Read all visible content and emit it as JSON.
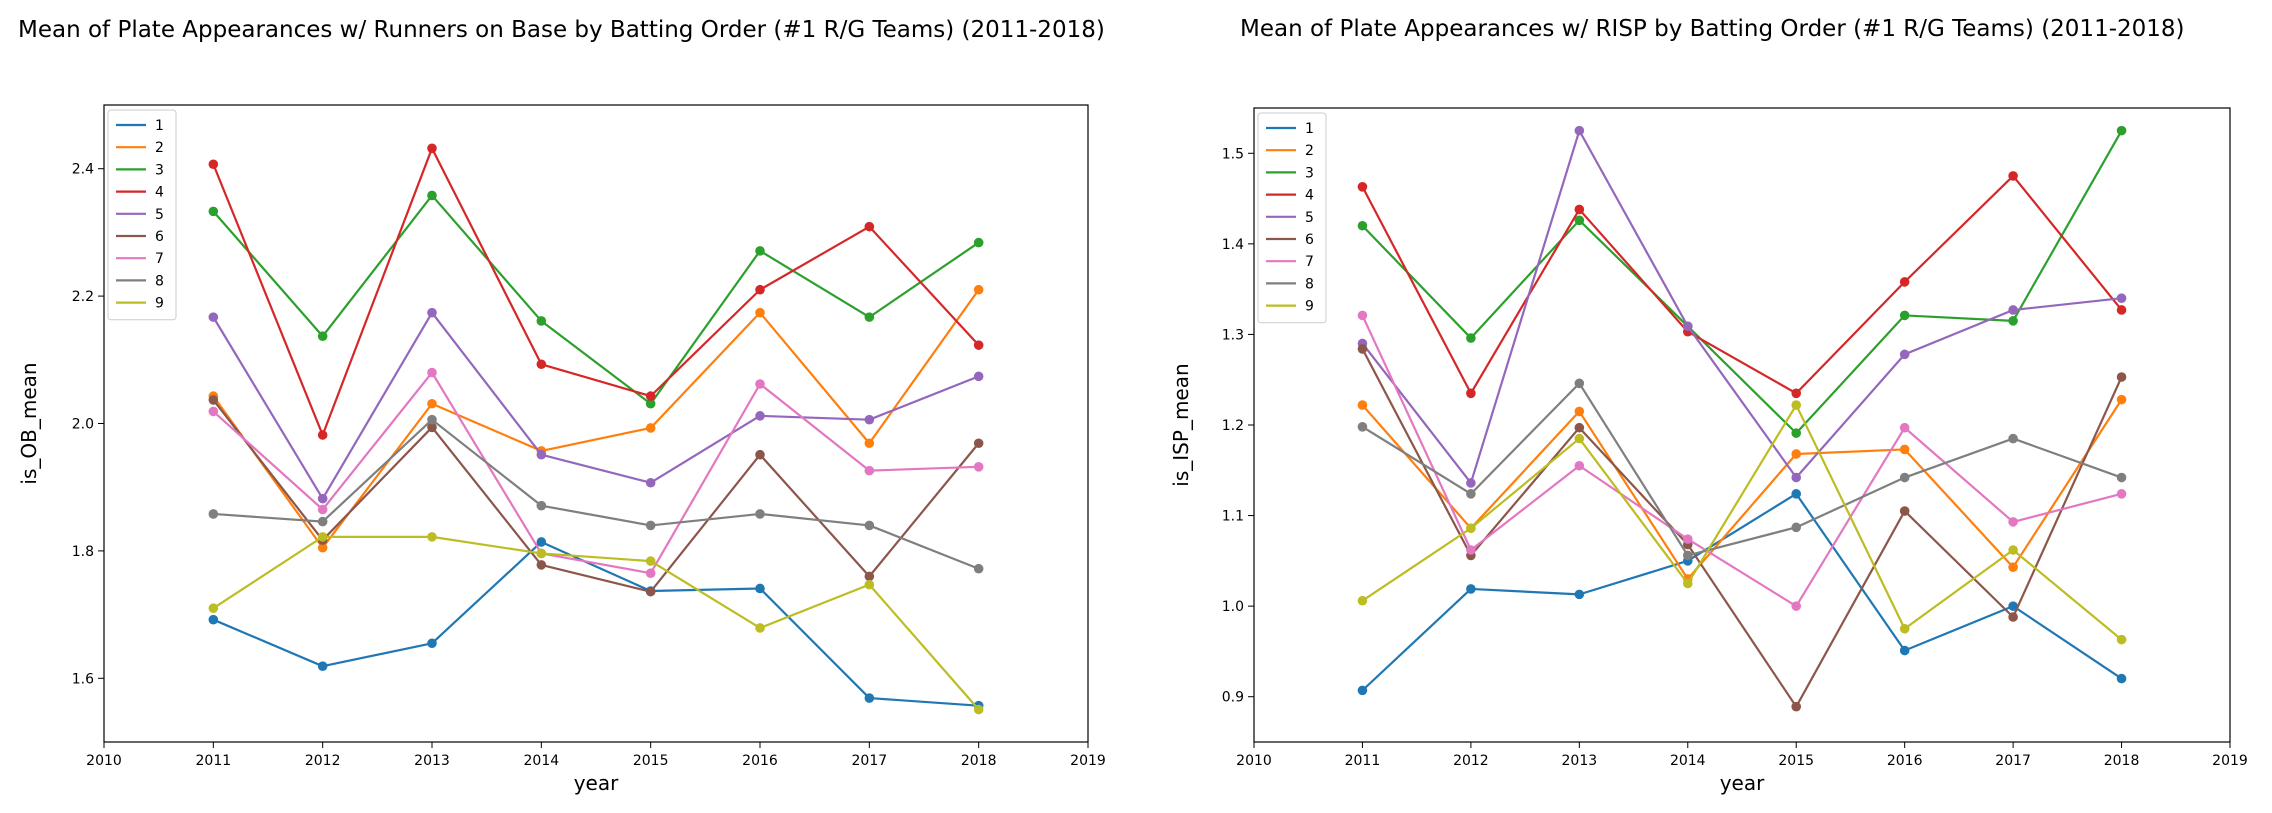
{
  "chart_data": [
    {
      "type": "line",
      "title": "Mean of Plate Appearances w/ Runners on Base by Batting Order (#1 R/G Teams) (2011-2018)",
      "xlabel": "year",
      "ylabel": "is_OB_mean",
      "xlim": [
        2010,
        2019
      ],
      "ylim": [
        1.5,
        2.5
      ],
      "xticks": [
        "2010",
        "2011",
        "2012",
        "2013",
        "2014",
        "2015",
        "2016",
        "2017",
        "2018",
        "2019"
      ],
      "yticks": [
        "1.6",
        "1.8",
        "2.0",
        "2.2",
        "2.4"
      ],
      "legend": "top-left",
      "grid": false,
      "x": [
        2011,
        2012,
        2013,
        2014,
        2015,
        2016,
        2017,
        2018
      ],
      "series": [
        {
          "name": "1",
          "color": "#1f77b4",
          "values": [
            1.692,
            1.619,
            1.655,
            1.814,
            1.737,
            1.741,
            1.569,
            1.557
          ]
        },
        {
          "name": "2",
          "color": "#ff7f0e",
          "values": [
            2.043,
            1.805,
            2.031,
            1.957,
            1.993,
            2.174,
            1.969,
            2.21
          ]
        },
        {
          "name": "3",
          "color": "#2ca02c",
          "values": [
            2.333,
            2.137,
            2.358,
            2.161,
            2.031,
            2.271,
            2.167,
            2.284
          ]
        },
        {
          "name": "4",
          "color": "#d62728",
          "values": [
            2.407,
            1.982,
            2.432,
            2.093,
            2.043,
            2.21,
            2.309,
            2.123
          ]
        },
        {
          "name": "5",
          "color": "#9467bd",
          "values": [
            2.167,
            1.882,
            2.174,
            1.951,
            1.907,
            2.012,
            2.006,
            2.074
          ]
        },
        {
          "name": "6",
          "color": "#8c564b",
          "values": [
            2.037,
            1.817,
            1.994,
            1.778,
            1.736,
            1.951,
            1.76,
            1.969
          ]
        },
        {
          "name": "7",
          "color": "#e377c2",
          "values": [
            2.019,
            1.865,
            2.08,
            1.796,
            1.765,
            2.062,
            1.926,
            1.932
          ]
        },
        {
          "name": "8",
          "color": "#7f7f7f",
          "values": [
            1.858,
            1.846,
            2.006,
            1.871,
            1.84,
            1.858,
            1.84,
            1.772
          ]
        },
        {
          "name": "9",
          "color": "#bcbd22",
          "values": [
            1.71,
            1.822,
            1.822,
            1.796,
            1.784,
            1.679,
            1.747,
            1.551
          ]
        }
      ]
    },
    {
      "type": "line",
      "title": "Mean of Plate Appearances w/ RISP by Batting Order (#1 R/G Teams) (2011-2018)",
      "xlabel": "year",
      "ylabel": "is_ISP_mean",
      "xlim": [
        2010,
        2019
      ],
      "ylim": [
        0.85,
        1.55
      ],
      "xticks": [
        "2010",
        "2011",
        "2012",
        "2013",
        "2014",
        "2015",
        "2016",
        "2017",
        "2018",
        "2019"
      ],
      "yticks": [
        "0.9",
        "1.0",
        "1.1",
        "1.2",
        "1.3",
        "1.4",
        "1.5"
      ],
      "legend": "top-left",
      "grid": false,
      "x": [
        2011,
        2012,
        2013,
        2014,
        2015,
        2016,
        2017,
        2018
      ],
      "series": [
        {
          "name": "1",
          "color": "#1f77b4",
          "values": [
            0.907,
            1.019,
            1.013,
            1.05,
            1.124,
            0.951,
            1.0,
            0.92
          ]
        },
        {
          "name": "2",
          "color": "#ff7f0e",
          "values": [
            1.222,
            1.086,
            1.215,
            1.03,
            1.168,
            1.173,
            1.043,
            1.228
          ]
        },
        {
          "name": "3",
          "color": "#2ca02c",
          "values": [
            1.42,
            1.296,
            1.426,
            1.309,
            1.191,
            1.321,
            1.315,
            1.525
          ]
        },
        {
          "name": "4",
          "color": "#d62728",
          "values": [
            1.463,
            1.235,
            1.438,
            1.303,
            1.235,
            1.358,
            1.475,
            1.327
          ]
        },
        {
          "name": "5",
          "color": "#9467bd",
          "values": [
            1.29,
            1.136,
            1.525,
            1.309,
            1.142,
            1.278,
            1.327,
            1.34
          ]
        },
        {
          "name": "6",
          "color": "#8c564b",
          "values": [
            1.284,
            1.056,
            1.197,
            1.068,
            0.889,
            1.105,
            0.988,
            1.253
          ]
        },
        {
          "name": "7",
          "color": "#e377c2",
          "values": [
            1.321,
            1.062,
            1.155,
            1.074,
            1.0,
            1.197,
            1.093,
            1.124
          ]
        },
        {
          "name": "8",
          "color": "#7f7f7f",
          "values": [
            1.198,
            1.124,
            1.246,
            1.056,
            1.087,
            1.142,
            1.185,
            1.142
          ]
        },
        {
          "name": "9",
          "color": "#bcbd22",
          "values": [
            1.006,
            1.086,
            1.185,
            1.025,
            1.222,
            0.975,
            1.062,
            0.963
          ]
        }
      ]
    }
  ]
}
